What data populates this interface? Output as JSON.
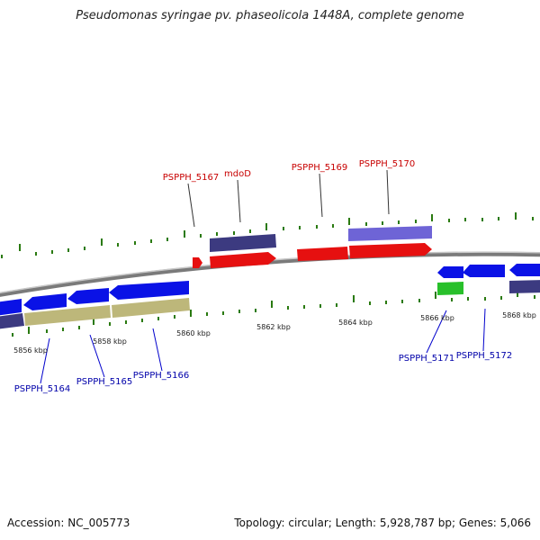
{
  "title": "Pseudomonas syringae pv. phaseolicola 1448A, complete genome",
  "footer": {
    "accession": "Accession: NC_005773",
    "summary": "Topology: circular; Length: 5,928,787 bp; Genes: 5,066"
  },
  "colors": {
    "backbone": "#8a8a8a",
    "tick": "#2a7a10",
    "blue_gene": "#0a12e6",
    "navy_gene": "#3c3a80",
    "khaki_gene": "#bdb77a",
    "red_gene": "#e61010",
    "lavender_gene": "#6e64d6",
    "green_gene": "#28c02a",
    "top_label": "#c80000",
    "bottom_label": "#0000aa"
  },
  "scale_labels": [
    "5856 kbp",
    "5858 kbp",
    "5860 kbp",
    "5862 kbp",
    "5864 kbp",
    "5866 kbp",
    "5868 kbp"
  ],
  "gene_labels_top": [
    "PSPPH_5167",
    "mdoD",
    "PSPPH_5169",
    "PSPPH_5170"
  ],
  "gene_labels_bottom": [
    "PSPPH_5164",
    "PSPPH_5165",
    "PSPPH_5166",
    "PSPPH_5171",
    "PSPPH_5172"
  ]
}
